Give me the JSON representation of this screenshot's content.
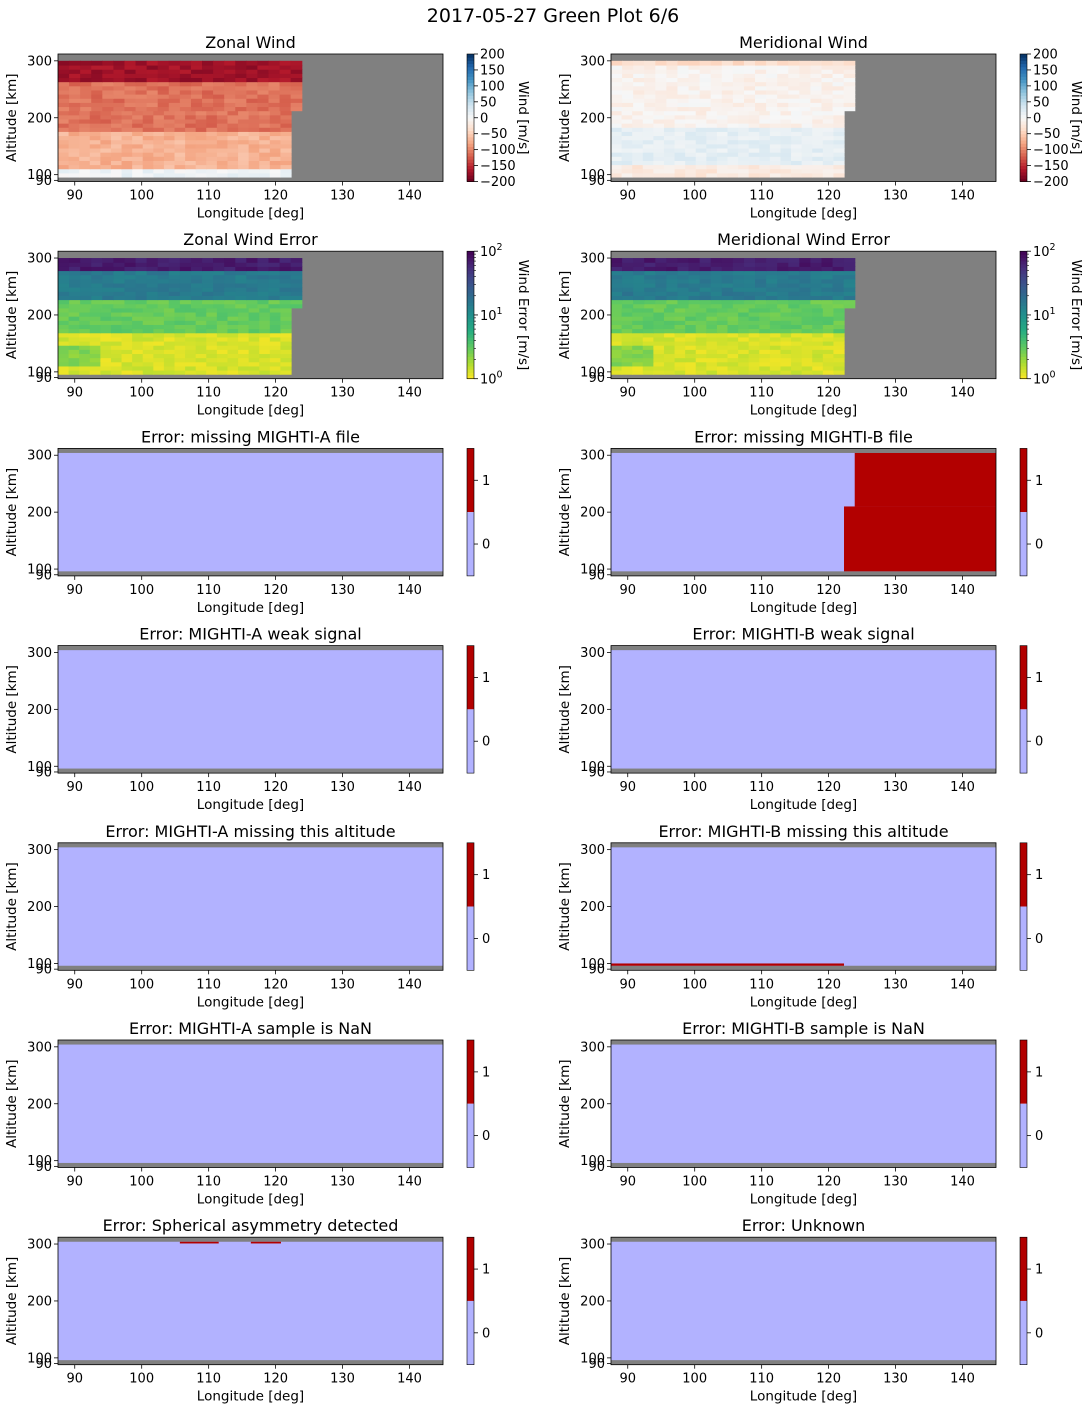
{
  "figure": {
    "title": "2017-05-27 Green Plot 6/6",
    "xlabel": "Longitude [deg]",
    "ylabel": "Altitude [km]",
    "xticks": [
      "90",
      "100",
      "110",
      "120",
      "130",
      "140"
    ],
    "yticks": [
      "90",
      "100",
      "200",
      "300"
    ],
    "colors": {
      "nodata": "#808080",
      "flag_off": "#b2b2ff",
      "flag_on": "#b20000"
    }
  },
  "chart_data": [
    {
      "type": "heatmap",
      "title": "Zonal Wind",
      "xlabel": "Longitude [deg]",
      "ylabel": "Altitude [km]",
      "xlim": [
        87.5,
        145
      ],
      "ylim": [
        88,
        312
      ],
      "x_ticks": [
        90,
        100,
        110,
        120,
        130,
        140
      ],
      "y_ticks": [
        90,
        100,
        200,
        300
      ],
      "colorbar": {
        "label": "Wind [m/s]",
        "scale": "linear",
        "colormap": "RdBu",
        "range": [
          -200,
          200
        ],
        "ticks": [
          "200",
          "150",
          "100",
          "50",
          "0",
          "−50",
          "−100",
          "−150",
          "−200"
        ]
      },
      "data_extent": {
        "lon_end_low": 122.3,
        "lon_end_high": 123.9,
        "alt_step": 210
      },
      "summary": [
        {
          "alt_range": [
            96,
            112
          ],
          "value": 10
        },
        {
          "alt_range": [
            112,
            175
          ],
          "value": -70
        },
        {
          "alt_range": [
            175,
            265
          ],
          "value": -110
        },
        {
          "alt_range": [
            265,
            300
          ],
          "value": -170
        }
      ]
    },
    {
      "type": "heatmap",
      "title": "Meridional Wind",
      "xlabel": "Longitude [deg]",
      "ylabel": "Altitude [km]",
      "xlim": [
        87.5,
        145
      ],
      "ylim": [
        88,
        312
      ],
      "x_ticks": [
        90,
        100,
        110,
        120,
        130,
        140
      ],
      "y_ticks": [
        90,
        100,
        200,
        300
      ],
      "colorbar": {
        "label": "Wind [m/s]",
        "scale": "linear",
        "colormap": "RdBu",
        "range": [
          -200,
          200
        ],
        "ticks": [
          "200",
          "150",
          "100",
          "50",
          "0",
          "−50",
          "−100",
          "−150",
          "−200"
        ]
      },
      "data_extent": {
        "lon_end_low": 122.3,
        "lon_end_high": 123.9,
        "alt_step": 210
      },
      "summary": [
        {
          "alt_range": [
            96,
            120
          ],
          "value": -20
        },
        {
          "alt_range": [
            120,
            180
          ],
          "value": 20
        },
        {
          "alt_range": [
            180,
            290
          ],
          "value": -8
        },
        {
          "alt_range": [
            290,
            300
          ],
          "value": -35
        }
      ]
    },
    {
      "type": "heatmap",
      "title": "Zonal Wind Error",
      "xlabel": "Longitude [deg]",
      "ylabel": "Altitude [km]",
      "xlim": [
        87.5,
        145
      ],
      "ylim": [
        88,
        312
      ],
      "x_ticks": [
        90,
        100,
        110,
        120,
        130,
        140
      ],
      "y_ticks": [
        90,
        100,
        200,
        300
      ],
      "colorbar": {
        "label": "Wind Error [m/s]",
        "scale": "log",
        "colormap": "viridis_r",
        "range": [
          1,
          100
        ],
        "ticks": [
          {
            "base": "10",
            "exp": "2"
          },
          {
            "base": "10",
            "exp": "1"
          },
          {
            "base": "10",
            "exp": "0"
          }
        ]
      },
      "data_extent": {
        "lon_end_low": 122.3,
        "lon_end_high": 123.9,
        "alt_step": 210
      },
      "summary": [
        {
          "alt_range": [
            96,
            170
          ],
          "value": 1.3
        },
        {
          "alt_range": [
            170,
            230
          ],
          "value": 3
        },
        {
          "alt_range": [
            230,
            280
          ],
          "value": 15
        },
        {
          "alt_range": [
            280,
            300
          ],
          "value": 70
        }
      ]
    },
    {
      "type": "heatmap",
      "title": "Meridional Wind Error",
      "xlabel": "Longitude [deg]",
      "ylabel": "Altitude [km]",
      "xlim": [
        87.5,
        145
      ],
      "ylim": [
        88,
        312
      ],
      "x_ticks": [
        90,
        100,
        110,
        120,
        130,
        140
      ],
      "y_ticks": [
        90,
        100,
        200,
        300
      ],
      "colorbar": {
        "label": "Wind Error [m/s]",
        "scale": "log",
        "colormap": "viridis_r",
        "range": [
          1,
          100
        ],
        "ticks": [
          {
            "base": "10",
            "exp": "2"
          },
          {
            "base": "10",
            "exp": "1"
          },
          {
            "base": "10",
            "exp": "0"
          }
        ]
      },
      "data_extent": {
        "lon_end_low": 122.3,
        "lon_end_high": 123.9,
        "alt_step": 210
      },
      "summary": [
        {
          "alt_range": [
            96,
            170
          ],
          "value": 1.3
        },
        {
          "alt_range": [
            170,
            230
          ],
          "value": 3
        },
        {
          "alt_range": [
            230,
            280
          ],
          "value": 15
        },
        {
          "alt_range": [
            280,
            300
          ],
          "value": 70
        }
      ]
    },
    {
      "type": "heatmap",
      "title": "Error: missing MIGHTI-A file",
      "xlabel": "Longitude [deg]",
      "ylabel": "Altitude [km]",
      "xlim": [
        87.5,
        145
      ],
      "ylim": [
        88,
        312
      ],
      "colorbar": {
        "ticks": [
          "1",
          "0"
        ],
        "values": [
          0,
          1
        ]
      },
      "background": 0,
      "flags": []
    },
    {
      "type": "heatmap",
      "title": "Error: missing MIGHTI-B file",
      "xlabel": "Longitude [deg]",
      "ylabel": "Altitude [km]",
      "xlim": [
        87.5,
        145
      ],
      "ylim": [
        88,
        312
      ],
      "colorbar": {
        "ticks": [
          "1",
          "0"
        ],
        "values": [
          0,
          1
        ]
      },
      "background": 0,
      "flags": [
        {
          "lon": [
            122.3,
            145
          ],
          "alt": [
            96,
            210
          ],
          "value": 1
        },
        {
          "lon": [
            123.9,
            145
          ],
          "alt": [
            210,
            304
          ],
          "value": 1
        }
      ]
    },
    {
      "type": "heatmap",
      "title": "Error: MIGHTI-A weak signal",
      "xlabel": "Longitude [deg]",
      "ylabel": "Altitude [km]",
      "xlim": [
        87.5,
        145
      ],
      "ylim": [
        88,
        312
      ],
      "colorbar": {
        "ticks": [
          "1",
          "0"
        ],
        "values": [
          0,
          1
        ]
      },
      "background": 0,
      "flags": []
    },
    {
      "type": "heatmap",
      "title": "Error: MIGHTI-B weak signal",
      "xlabel": "Longitude [deg]",
      "ylabel": "Altitude [km]",
      "xlim": [
        87.5,
        145
      ],
      "ylim": [
        88,
        312
      ],
      "colorbar": {
        "ticks": [
          "1",
          "0"
        ],
        "values": [
          0,
          1
        ]
      },
      "background": 0,
      "flags": []
    },
    {
      "type": "heatmap",
      "title": "Error: MIGHTI-A missing this altitude",
      "xlabel": "Longitude [deg]",
      "ylabel": "Altitude [km]",
      "xlim": [
        87.5,
        145
      ],
      "ylim": [
        88,
        312
      ],
      "colorbar": {
        "ticks": [
          "1",
          "0"
        ],
        "values": [
          0,
          1
        ]
      },
      "background": 0,
      "flags": []
    },
    {
      "type": "heatmap",
      "title": "Error: MIGHTI-B missing this altitude",
      "xlabel": "Longitude [deg]",
      "ylabel": "Altitude [km]",
      "xlim": [
        87.5,
        145
      ],
      "ylim": [
        88,
        312
      ],
      "colorbar": {
        "ticks": [
          "1",
          "0"
        ],
        "values": [
          0,
          1
        ]
      },
      "background": 0,
      "flags": [
        {
          "lon": [
            87.5,
            122.3
          ],
          "alt": [
            96,
            100
          ],
          "value": 1
        }
      ]
    },
    {
      "type": "heatmap",
      "title": "Error: MIGHTI-A sample is NaN",
      "xlabel": "Longitude [deg]",
      "ylabel": "Altitude [km]",
      "xlim": [
        87.5,
        145
      ],
      "ylim": [
        88,
        312
      ],
      "colorbar": {
        "ticks": [
          "1",
          "0"
        ],
        "values": [
          0,
          1
        ]
      },
      "background": 0,
      "flags": []
    },
    {
      "type": "heatmap",
      "title": "Error: MIGHTI-B sample is NaN",
      "xlabel": "Longitude [deg]",
      "ylabel": "Altitude [km]",
      "xlim": [
        87.5,
        145
      ],
      "ylim": [
        88,
        312
      ],
      "colorbar": {
        "ticks": [
          "1",
          "0"
        ],
        "values": [
          0,
          1
        ]
      },
      "background": 0,
      "flags": []
    },
    {
      "type": "heatmap",
      "title": "Error: Spherical asymmetry detected",
      "xlabel": "Longitude [deg]",
      "ylabel": "Altitude [km]",
      "xlim": [
        87.5,
        145
      ],
      "ylim": [
        88,
        312
      ],
      "colorbar": {
        "ticks": [
          "1",
          "0"
        ],
        "values": [
          0,
          1
        ]
      },
      "background": 0,
      "flags": [
        {
          "lon": [
            105.7,
            111.5
          ],
          "alt": [
            301,
            304
          ],
          "value": 1
        },
        {
          "lon": [
            116.3,
            120.8
          ],
          "alt": [
            301,
            304
          ],
          "value": 1
        }
      ]
    },
    {
      "type": "heatmap",
      "title": "Error: Unknown",
      "xlabel": "Longitude [deg]",
      "ylabel": "Altitude [km]",
      "xlim": [
        87.5,
        145
      ],
      "ylim": [
        88,
        312
      ],
      "colorbar": {
        "ticks": [
          "1",
          "0"
        ],
        "values": [
          0,
          1
        ]
      },
      "background": 0,
      "flags": []
    }
  ]
}
